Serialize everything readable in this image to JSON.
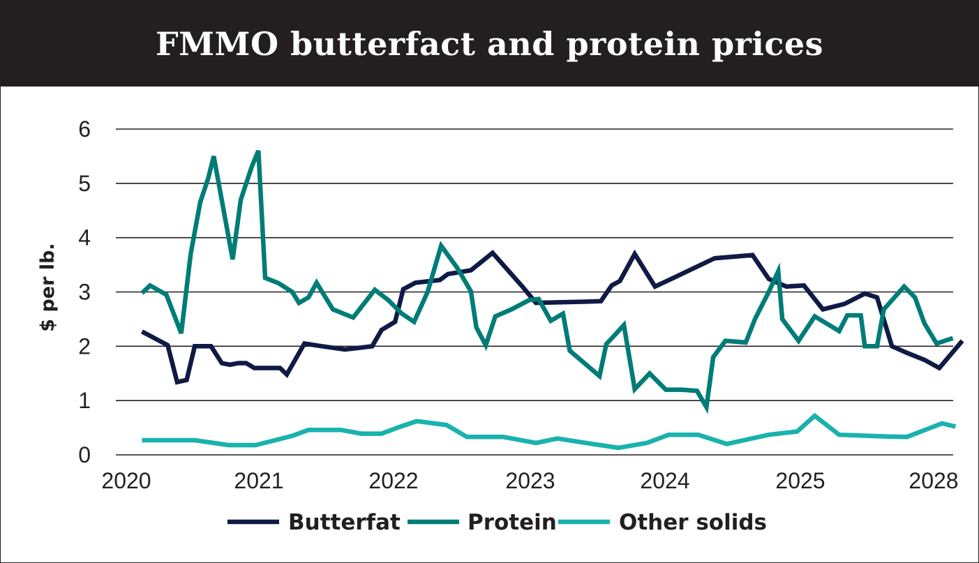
{
  "chart_data": {
    "type": "line",
    "title": "FMMO butterfact and protein prices",
    "xlabel": "",
    "ylabel": "$ per lb.",
    "ylim": [
      0,
      6
    ],
    "xlim": [
      2020.0,
      2028.1
    ],
    "yticks": [
      0,
      1,
      2,
      3,
      4,
      5,
      6
    ],
    "xticks": [
      {
        "value": 2020.05,
        "label": "2020"
      },
      {
        "value": 2021.0,
        "label": "2021"
      },
      {
        "value": 2022.0,
        "label": "2022"
      },
      {
        "value": 2023.0,
        "label": "2023"
      },
      {
        "value": 2024.0,
        "label": "2024"
      },
      {
        "value": 2025.0,
        "label": "2025"
      },
      {
        "value": 2028.0,
        "label": "2028"
      }
    ],
    "grid": true,
    "legend": "bottom",
    "series": [
      {
        "name": "Butterfat",
        "color": "#0f1a45",
        "points": [
          [
            2020.09,
            2.27
          ],
          [
            2020.28,
            2.02
          ],
          [
            2020.35,
            1.34
          ],
          [
            2020.42,
            1.38
          ],
          [
            2020.48,
            2.0
          ],
          [
            2020.6,
            2.0
          ],
          [
            2020.68,
            1.69
          ],
          [
            2020.74,
            1.66
          ],
          [
            2020.8,
            1.69
          ],
          [
            2020.86,
            1.69
          ],
          [
            2020.92,
            1.6
          ],
          [
            2021.11,
            1.6
          ],
          [
            2021.16,
            1.48
          ],
          [
            2021.29,
            2.05
          ],
          [
            2021.42,
            2.0
          ],
          [
            2021.59,
            1.94
          ],
          [
            2021.79,
            2.0
          ],
          [
            2021.86,
            2.3
          ],
          [
            2021.96,
            2.45
          ],
          [
            2022.02,
            3.05
          ],
          [
            2022.11,
            3.17
          ],
          [
            2022.29,
            3.22
          ],
          [
            2022.35,
            3.33
          ],
          [
            2022.52,
            3.4
          ],
          [
            2022.68,
            3.72
          ],
          [
            2022.9,
            3.1
          ],
          [
            2023.0,
            2.8
          ],
          [
            2023.35,
            2.82
          ],
          [
            2023.48,
            2.83
          ],
          [
            2023.56,
            3.12
          ],
          [
            2023.62,
            3.2
          ],
          [
            2023.73,
            3.7
          ],
          [
            2023.88,
            3.1
          ],
          [
            2024.0,
            3.24
          ],
          [
            2024.32,
            3.62
          ],
          [
            2024.6,
            3.68
          ],
          [
            2024.72,
            3.24
          ],
          [
            2024.85,
            3.1
          ],
          [
            2024.98,
            3.12
          ],
          [
            2025.12,
            2.68
          ],
          [
            2025.28,
            2.78
          ],
          [
            2025.43,
            2.97
          ],
          [
            2025.52,
            2.9
          ],
          [
            2025.63,
            2.0
          ],
          [
            2025.74,
            1.88
          ],
          [
            2025.87,
            1.75
          ],
          [
            2025.98,
            1.6
          ],
          [
            2026.15,
            2.1
          ]
        ]
      },
      {
        "name": "Protein",
        "color": "#007c77",
        "points": [
          [
            2020.09,
            2.98
          ],
          [
            2020.15,
            3.12
          ],
          [
            2020.27,
            2.95
          ],
          [
            2020.38,
            2.24
          ],
          [
            2020.45,
            3.7
          ],
          [
            2020.52,
            4.65
          ],
          [
            2020.58,
            5.1
          ],
          [
            2020.62,
            5.5
          ],
          [
            2020.76,
            3.6
          ],
          [
            2020.82,
            4.7
          ],
          [
            2020.9,
            5.3
          ],
          [
            2020.95,
            5.6
          ],
          [
            2021.0,
            3.26
          ],
          [
            2021.1,
            3.16
          ],
          [
            2021.2,
            3.0
          ],
          [
            2021.25,
            2.8
          ],
          [
            2021.32,
            2.9
          ],
          [
            2021.38,
            3.17
          ],
          [
            2021.5,
            2.68
          ],
          [
            2021.65,
            2.53
          ],
          [
            2021.81,
            3.04
          ],
          [
            2021.91,
            2.85
          ],
          [
            2022.01,
            2.6
          ],
          [
            2022.1,
            2.45
          ],
          [
            2022.2,
            3.0
          ],
          [
            2022.3,
            3.85
          ],
          [
            2022.42,
            3.44
          ],
          [
            2022.52,
            3.01
          ],
          [
            2022.56,
            2.35
          ],
          [
            2022.63,
            2.02
          ],
          [
            2022.7,
            2.55
          ],
          [
            2022.82,
            2.68
          ],
          [
            2022.95,
            2.85
          ],
          [
            2023.02,
            2.87
          ],
          [
            2023.11,
            2.47
          ],
          [
            2023.2,
            2.6
          ],
          [
            2023.25,
            1.92
          ],
          [
            2023.47,
            1.45
          ],
          [
            2023.52,
            2.04
          ],
          [
            2023.58,
            2.2
          ],
          [
            2023.65,
            2.39
          ],
          [
            2023.73,
            1.21
          ],
          [
            2023.84,
            1.5
          ],
          [
            2023.96,
            1.2
          ],
          [
            2024.08,
            1.2
          ],
          [
            2024.19,
            1.18
          ],
          [
            2024.26,
            0.88
          ],
          [
            2024.31,
            1.8
          ],
          [
            2024.4,
            2.1
          ],
          [
            2024.55,
            2.07
          ],
          [
            2024.62,
            2.51
          ],
          [
            2024.72,
            3.0
          ],
          [
            2024.79,
            3.38
          ],
          [
            2024.82,
            2.5
          ],
          [
            2024.94,
            2.1
          ],
          [
            2025.06,
            2.55
          ],
          [
            2025.24,
            2.28
          ],
          [
            2025.3,
            2.57
          ],
          [
            2025.4,
            2.57
          ],
          [
            2025.43,
            2.0
          ],
          [
            2025.52,
            2.0
          ],
          [
            2025.57,
            2.68
          ],
          [
            2025.72,
            3.1
          ],
          [
            2025.8,
            2.9
          ],
          [
            2025.87,
            2.42
          ],
          [
            2025.96,
            2.05
          ],
          [
            2026.08,
            2.15
          ]
        ]
      },
      {
        "name": "Other solids",
        "color": "#19b2ad",
        "points": [
          [
            2020.09,
            0.27
          ],
          [
            2020.48,
            0.27
          ],
          [
            2020.73,
            0.18
          ],
          [
            2020.93,
            0.18
          ],
          [
            2021.2,
            0.35
          ],
          [
            2021.32,
            0.46
          ],
          [
            2021.56,
            0.46
          ],
          [
            2021.71,
            0.39
          ],
          [
            2021.86,
            0.39
          ],
          [
            2022.0,
            0.52
          ],
          [
            2022.12,
            0.62
          ],
          [
            2022.34,
            0.55
          ],
          [
            2022.49,
            0.33
          ],
          [
            2022.76,
            0.33
          ],
          [
            2023.0,
            0.22
          ],
          [
            2023.16,
            0.3
          ],
          [
            2023.42,
            0.2
          ],
          [
            2023.61,
            0.13
          ],
          [
            2023.82,
            0.22
          ],
          [
            2023.98,
            0.37
          ],
          [
            2024.2,
            0.37
          ],
          [
            2024.41,
            0.2
          ],
          [
            2024.72,
            0.37
          ],
          [
            2024.93,
            0.43
          ],
          [
            2025.06,
            0.72
          ],
          [
            2025.24,
            0.37
          ],
          [
            2025.57,
            0.34
          ],
          [
            2025.74,
            0.33
          ],
          [
            2026.0,
            0.58
          ],
          [
            2026.1,
            0.52
          ]
        ]
      }
    ]
  }
}
